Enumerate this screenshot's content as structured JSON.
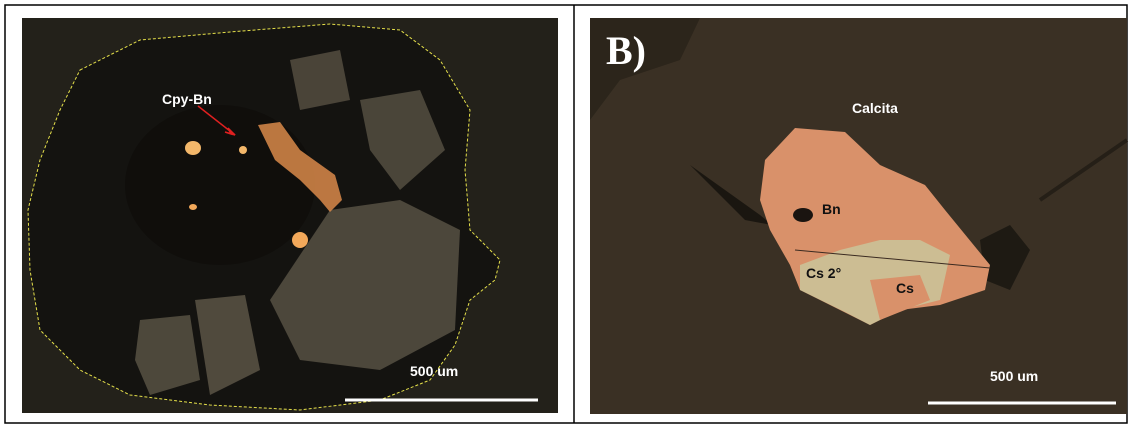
{
  "panels": [
    {
      "labels": [
        "Cpy-Bn"
      ],
      "scale_bar": "500 um"
    },
    {
      "panel_label": "B)",
      "labels": [
        "Calcita",
        "Bn",
        "Cs 2°",
        "Cs"
      ],
      "scale_bar": "500 um"
    }
  ]
}
